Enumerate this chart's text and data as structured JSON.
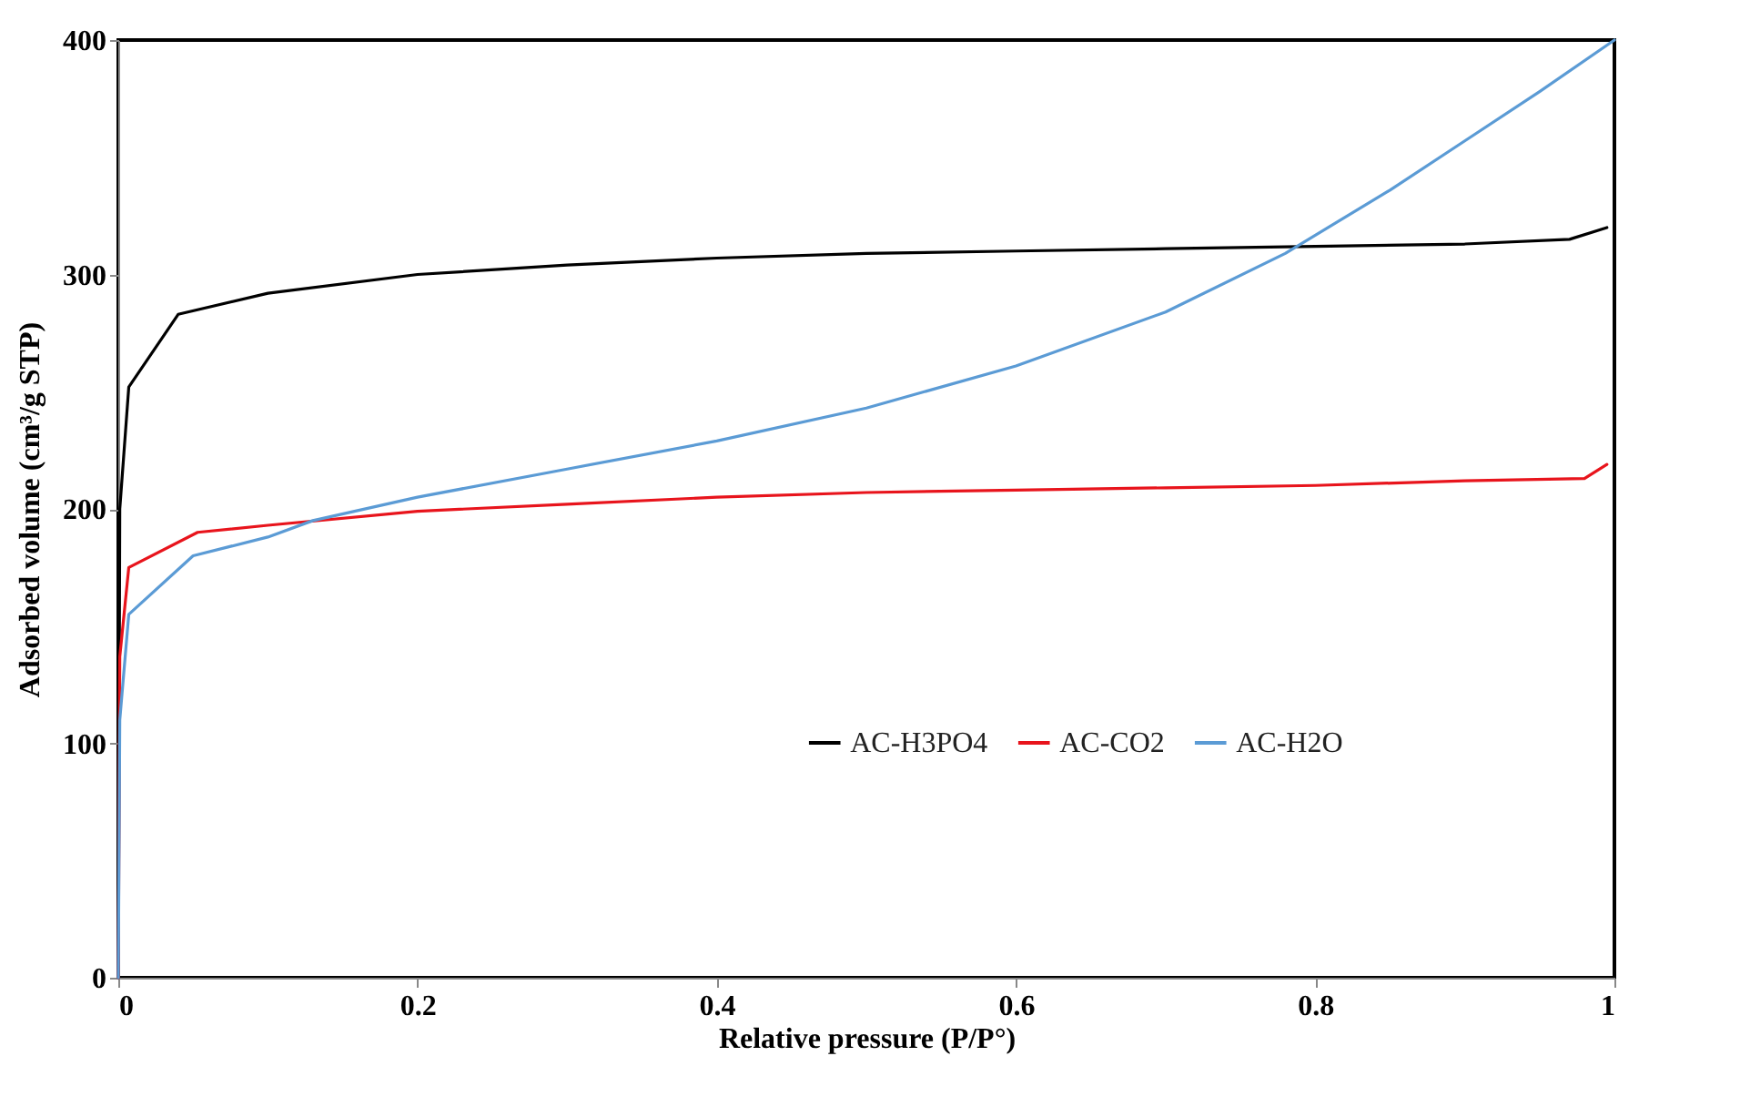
{
  "chart_data": {
    "type": "line",
    "xlabel": "Relative pressure (P/P°)",
    "ylabel": "Adsorbed volume (cm³/g STP)",
    "xlim": [
      0,
      1
    ],
    "ylim": [
      0,
      400
    ],
    "xticks": [
      0,
      0.2,
      0.4,
      0.6,
      0.8,
      1
    ],
    "yticks": [
      0,
      100,
      200,
      300,
      400
    ],
    "grid": false,
    "legend": "bottom right",
    "marker": "none",
    "line_style": "solid",
    "series": [
      {
        "name": "AC-H3PO4",
        "color": "#000000",
        "x": [
          0,
          0.001,
          0.007,
          0.04,
          0.1,
          0.2,
          0.3,
          0.4,
          0.5,
          0.6,
          0.7,
          0.8,
          0.9,
          0.97,
          0.995
        ],
        "values": [
          0,
          200,
          252,
          283,
          292,
          300,
          304,
          307,
          309,
          310,
          311,
          312,
          313,
          315,
          320
        ]
      },
      {
        "name": "AC-CO2",
        "color": "#e8141c",
        "x": [
          0,
          0.001,
          0.007,
          0.053,
          0.1,
          0.2,
          0.3,
          0.4,
          0.5,
          0.6,
          0.7,
          0.8,
          0.9,
          0.98,
          0.995
        ],
        "values": [
          0,
          137,
          175,
          190,
          193,
          199,
          202,
          205,
          207,
          208,
          209,
          210,
          212,
          213,
          219
        ]
      },
      {
        "name": "AC-H2O",
        "color": "#5b9bd5",
        "x": [
          0,
          0.001,
          0.007,
          0.05,
          0.1,
          0.13,
          0.2,
          0.3,
          0.4,
          0.5,
          0.6,
          0.7,
          0.78,
          0.85,
          0.9,
          0.95,
          1
        ],
        "values": [
          0,
          110,
          155,
          180,
          188,
          195,
          205,
          217,
          229,
          243,
          261,
          284,
          309,
          336,
          357,
          378,
          400
        ]
      }
    ]
  }
}
